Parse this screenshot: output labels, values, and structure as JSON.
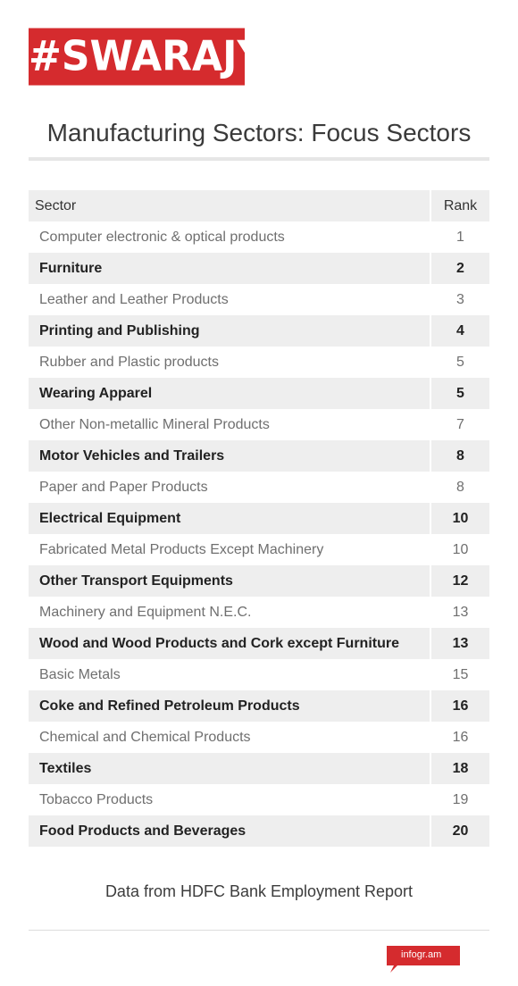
{
  "brand": {
    "logo_text": "#SWARAJYA",
    "color": "#d52b2e"
  },
  "chart_data": {
    "type": "table",
    "title": "Manufacturing Sectors: Focus Sectors",
    "columns": [
      "Sector",
      "Rank"
    ],
    "rows": [
      [
        "Computer electronic & optical products",
        "1"
      ],
      [
        "Furniture",
        "2"
      ],
      [
        "Leather and Leather Products",
        "3"
      ],
      [
        "Printing and Publishing",
        "4"
      ],
      [
        "Rubber and Plastic products",
        "5"
      ],
      [
        "Wearing Apparel",
        "5"
      ],
      [
        "Other Non-metallic Mineral Products",
        "7"
      ],
      [
        "Motor Vehicles and Trailers",
        "8"
      ],
      [
        "Paper and Paper Products",
        "8"
      ],
      [
        "Electrical Equipment",
        "10"
      ],
      [
        "Fabricated Metal Products Except Machinery",
        "10"
      ],
      [
        "Other Transport Equipments",
        "12"
      ],
      [
        "Machinery and Equipment N.E.C.",
        "13"
      ],
      [
        "Wood and Wood Products and Cork except Furniture",
        "13"
      ],
      [
        "Basic Metals",
        "15"
      ],
      [
        "Coke and Refined Petroleum Products",
        "16"
      ],
      [
        "Chemical and Chemical Products",
        "16"
      ],
      [
        "Textiles",
        "18"
      ],
      [
        "Tobacco Products",
        "19"
      ],
      [
        "Food Products and Beverages",
        "20"
      ]
    ],
    "source": "Data from HDFC Bank Employment Report"
  },
  "footer": {
    "badge_text": "infogr.am",
    "badge_color": "#d52b2e"
  }
}
